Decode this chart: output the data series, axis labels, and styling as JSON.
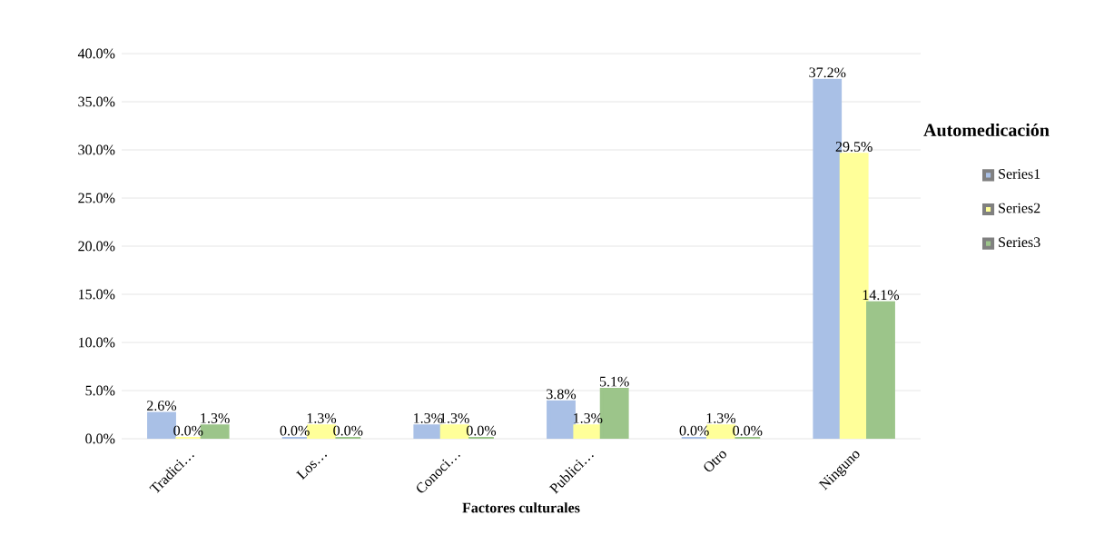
{
  "chart_data": {
    "type": "bar",
    "xlabel": "Factores culturales",
    "legend_title": "Automedicación",
    "categories": [
      "Tradici…",
      "Los…",
      "Conoci…",
      "Publici…",
      "Otro",
      "Ninguno"
    ],
    "series": [
      {
        "name": "Series1",
        "color": "#a9c0e6",
        "values": [
          2.6,
          0.0,
          1.3,
          3.8,
          0.0,
          37.2
        ],
        "value_labels": [
          "2.6%",
          "0.0%",
          "1.3%",
          "3.8%",
          "0.0%",
          "37.2%"
        ]
      },
      {
        "name": "Series2",
        "color": "#ffff99",
        "values": [
          0.0,
          1.3,
          1.3,
          1.3,
          1.3,
          29.5
        ],
        "value_labels": [
          "0.0%",
          "1.3%",
          "1.3%",
          "1.3%",
          "1.3%",
          "29.5%"
        ]
      },
      {
        "name": "Series3",
        "color": "#9cc58a",
        "values": [
          1.3,
          0.0,
          0.0,
          5.1,
          0.0,
          14.1
        ],
        "value_labels": [
          "1.3%",
          "0.0%",
          "0.0%",
          "5.1%",
          "0.0%",
          "14.1%"
        ]
      }
    ],
    "ylim": [
      0,
      40
    ],
    "yticks": [
      {
        "value": 0,
        "label": "0.0%"
      },
      {
        "value": 5,
        "label": "5.0%"
      },
      {
        "value": 10,
        "label": "10.0%"
      },
      {
        "value": 15,
        "label": "15.0%"
      },
      {
        "value": 20,
        "label": "20.0%"
      },
      {
        "value": 25,
        "label": "25.0%"
      },
      {
        "value": 30,
        "label": "30.0%"
      },
      {
        "value": 35,
        "label": "35.0%"
      },
      {
        "value": 40,
        "label": "40.0%"
      }
    ],
    "grid": "y",
    "legend": "right"
  }
}
